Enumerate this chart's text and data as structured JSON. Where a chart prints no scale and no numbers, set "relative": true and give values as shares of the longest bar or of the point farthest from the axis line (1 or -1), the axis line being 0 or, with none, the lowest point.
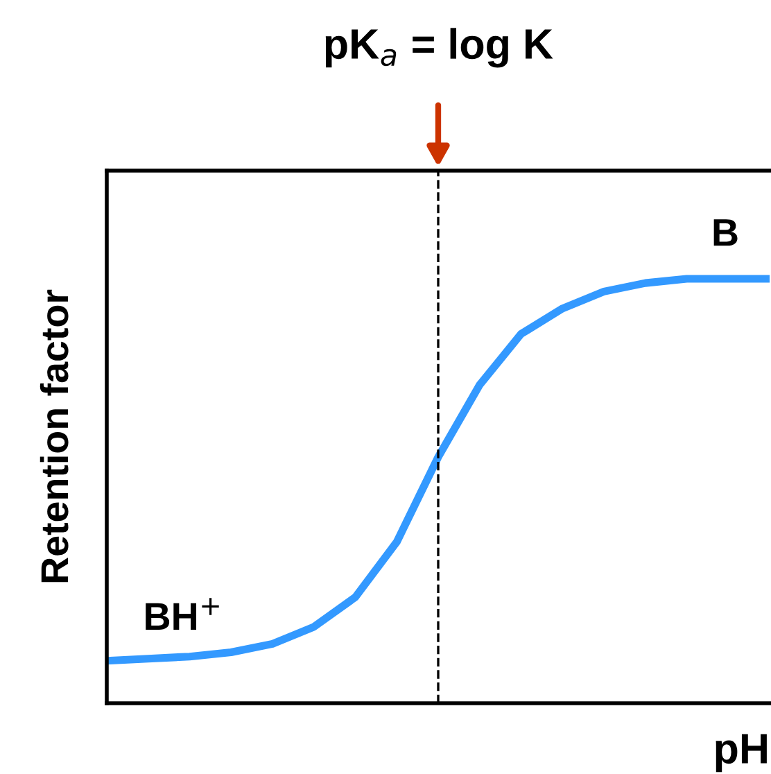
{
  "chart_data": {
    "type": "line",
    "relative": true,
    "xlabel": "pH",
    "ylabel": "Retention factor",
    "categories": [
      null,
      null,
      null,
      null,
      null,
      null,
      null,
      null,
      null,
      null,
      null,
      null,
      null,
      null,
      null,
      null,
      null
    ],
    "series": [
      {
        "color": "#3399ff",
        "values": [
          0.1,
          0.105,
          0.11,
          0.12,
          0.14,
          0.18,
          0.25,
          0.38,
          0.58,
          0.75,
          0.87,
          0.93,
          0.97,
          0.99,
          1.0,
          1.0,
          1.0
        ]
      }
    ],
    "annotations": [
      "pK$_{a}$ = log K",
      "BH$^{+}$",
      "B"
    ],
    "legend": false,
    "marker": "none",
    "line_style": "solid"
  }
}
